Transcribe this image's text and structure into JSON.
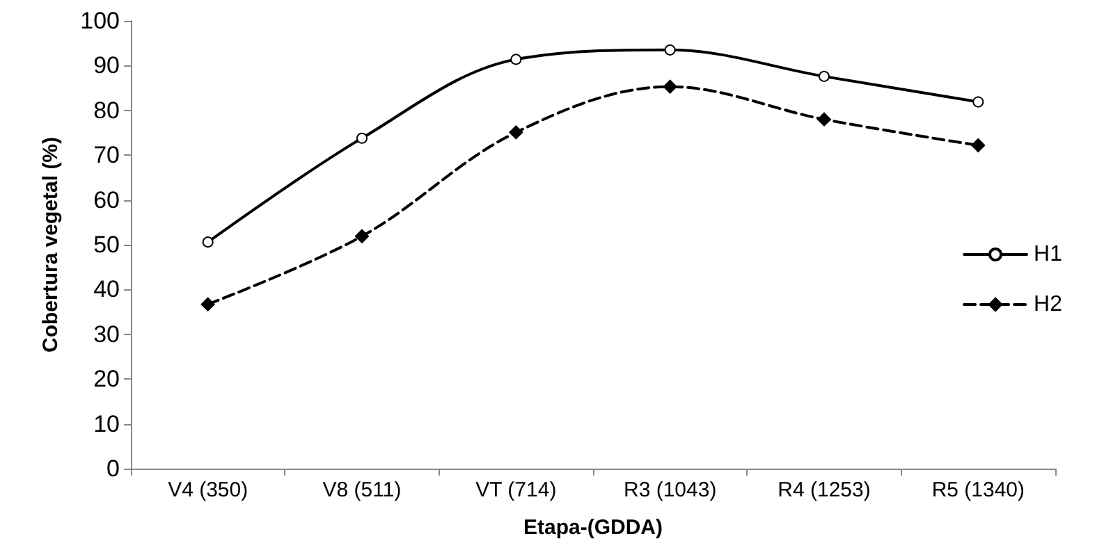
{
  "chart_data": {
    "type": "line",
    "xlabel": "Etapa-(GDDA)",
    "ylabel": "Cobertura vegetal (%)",
    "categories": [
      "V4 (350)",
      "V8 (511)",
      "VT (714)",
      "R3 (1043)",
      "R4 (1253)",
      "R5 (1340)"
    ],
    "ylim": [
      0,
      100
    ],
    "yticks": [
      0,
      10,
      20,
      30,
      40,
      50,
      60,
      70,
      80,
      90,
      100
    ],
    "grid": false,
    "legend": "right",
    "series": [
      {
        "name": "H1",
        "color": "#000000",
        "marker": "circle",
        "line_style": "solid",
        "values": [
          50.6,
          73.8,
          91.4,
          93.5,
          87.6,
          81.9
        ]
      },
      {
        "name": "H2",
        "color": "#000000",
        "marker": "diamond",
        "line_style": "dashed",
        "values": [
          36.7,
          51.9,
          75.1,
          85.3,
          78.0,
          72.2
        ]
      }
    ]
  }
}
